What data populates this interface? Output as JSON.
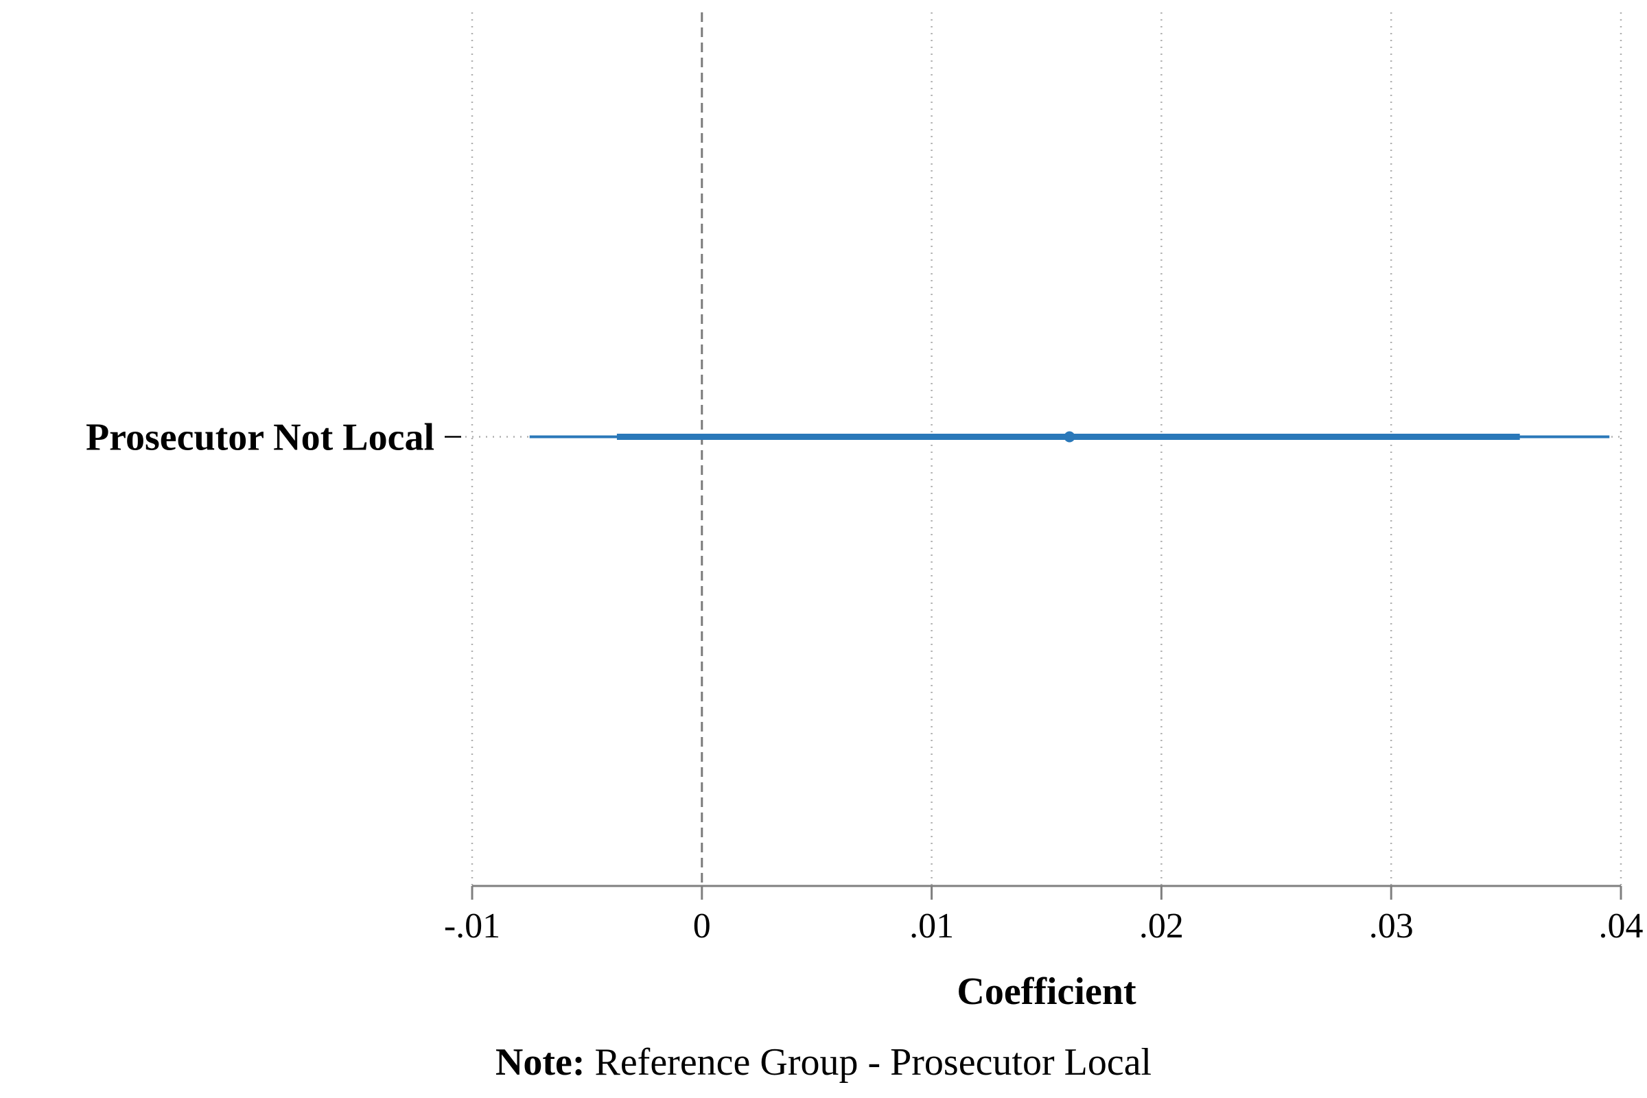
{
  "chart_data": {
    "type": "coefplot",
    "categories": [
      "Prosecutor Not Local"
    ],
    "estimates": [
      {
        "name": "Prosecutor Not Local",
        "coef": 0.016,
        "ci_inner": [
          -0.0037,
          0.0356
        ],
        "ci_outer": [
          -0.0075,
          0.0395
        ]
      }
    ],
    "xlabel": "Coefficient",
    "xlim": [
      -0.01,
      0.04
    ],
    "xticks": [
      -0.01,
      0,
      0.01,
      0.02,
      0.03,
      0.04
    ],
    "xtick_labels": [
      "-.01",
      "0",
      ".01",
      ".02",
      ".03",
      ".04"
    ],
    "reference_line": 0,
    "grid": "vertical-dotted",
    "note": {
      "label": "Note:",
      "text": " Reference Group - Prosecutor Local"
    },
    "colors": {
      "estimate": "#2a78b9",
      "axis": "#7f7f7f",
      "grid": "#b0b0b0",
      "reference": "#7a7a7a"
    }
  }
}
